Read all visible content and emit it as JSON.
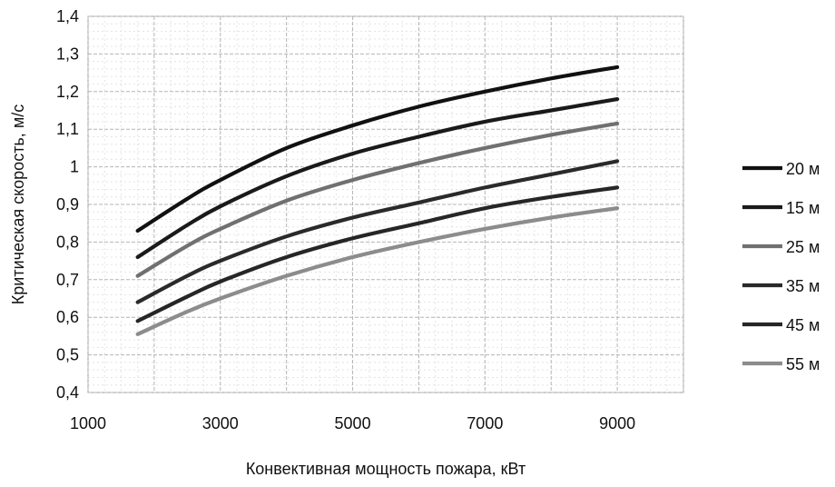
{
  "chart_data": {
    "type": "line",
    "title": "",
    "xlabel": "Конвективная мощность пожара, кВт",
    "ylabel": "Критическая скорость, м/с",
    "xlim": [
      1000,
      10000
    ],
    "ylim": [
      0.4,
      1.4
    ],
    "x_ticks": [
      "1000",
      "3000",
      "5000",
      "7000",
      "9000"
    ],
    "y_ticks": [
      "0,4",
      "0,5",
      "0,6",
      "0,7",
      "0,8",
      "0,9",
      "1",
      "1,1",
      "1,2",
      "1,3",
      "1,4"
    ],
    "grid": true,
    "legend_position": "right",
    "x": [
      1750,
      2500,
      3000,
      4000,
      5000,
      6000,
      7000,
      8000,
      9000
    ],
    "series": [
      {
        "name": "20 м",
        "color": "#111111",
        "values": [
          0.83,
          0.915,
          0.965,
          1.05,
          1.11,
          1.16,
          1.2,
          1.235,
          1.265
        ]
      },
      {
        "name": "15 м",
        "color": "#1a1a1a",
        "values": [
          0.76,
          0.845,
          0.895,
          0.975,
          1.035,
          1.08,
          1.12,
          1.15,
          1.18
        ]
      },
      {
        "name": "25 м",
        "color": "#707070",
        "values": [
          0.71,
          0.79,
          0.835,
          0.91,
          0.965,
          1.01,
          1.05,
          1.085,
          1.115
        ]
      },
      {
        "name": "35 м",
        "color": "#2a2a2a",
        "values": [
          0.64,
          0.71,
          0.75,
          0.815,
          0.865,
          0.905,
          0.945,
          0.98,
          1.015
        ]
      },
      {
        "name": "45 м",
        "color": "#262626",
        "values": [
          0.59,
          0.655,
          0.695,
          0.76,
          0.81,
          0.85,
          0.89,
          0.92,
          0.945
        ]
      },
      {
        "name": "55 м",
        "color": "#8c8c8c",
        "values": [
          0.555,
          0.615,
          0.65,
          0.71,
          0.76,
          0.8,
          0.835,
          0.865,
          0.89
        ]
      }
    ]
  }
}
